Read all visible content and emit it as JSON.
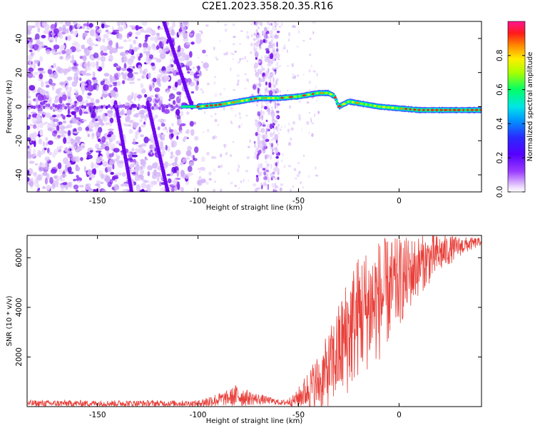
{
  "title": "C2E1.2023.358.20.35.R16",
  "chart_data": [
    {
      "type": "heatmap",
      "name": "spectrogram",
      "xlabel": "Height of straight line (km)",
      "ylabel": "Frequency (Hz)",
      "xlim": [
        -185,
        41
      ],
      "ylim": [
        -50,
        50
      ],
      "xticks": [
        -150,
        -100,
        -50,
        0
      ],
      "yticks": [
        -40,
        -20,
        0,
        20,
        40
      ],
      "colorbar": {
        "label": "Normalized spectral amplitude",
        "range": [
          0,
          1
        ],
        "ticks": [
          "0.0",
          "0.2",
          "0.4",
          "0.6",
          "0.8"
        ],
        "colormap": "rainbow (white-lavender at 0, purple, blue, cyan, green, yellow, orange, red, magenta at 1)"
      },
      "features": {
        "noise_region": [
          -185,
          -108
        ],
        "vertical_noise_band": [
          -72,
          -60
        ],
        "descending_streaks": [
          {
            "x_at_top": -117,
            "x_at_bottom": -103,
            "freq_top": 50,
            "freq_bottom": 0
          },
          {
            "x_at_top": -125,
            "x_at_bottom": -115,
            "freq_top": 2,
            "freq_bottom": -50
          },
          {
            "x_at_top": -141,
            "x_at_bottom": -133,
            "freq_top": 2,
            "freq_bottom": -50
          }
        ],
        "signal_ridge": [
          {
            "x": -108,
            "f": 0
          },
          {
            "x": -100,
            "f": 0
          },
          {
            "x": -90,
            "f": 1
          },
          {
            "x": -80,
            "f": 3
          },
          {
            "x": -70,
            "f": 5
          },
          {
            "x": -60,
            "f": 5
          },
          {
            "x": -50,
            "f": 6
          },
          {
            "x": -40,
            "f": 8
          },
          {
            "x": -35,
            "f": 8
          },
          {
            "x": -32,
            "f": 6
          },
          {
            "x": -30,
            "f": 0
          },
          {
            "x": -25,
            "f": 3
          },
          {
            "x": -20,
            "f": 2
          },
          {
            "x": -15,
            "f": 1
          },
          {
            "x": -10,
            "f": 0
          },
          {
            "x": 0,
            "f": -1
          },
          {
            "x": 10,
            "f": -2
          },
          {
            "x": 20,
            "f": -2
          },
          {
            "x": 30,
            "f": -2
          },
          {
            "x": 40,
            "f": -2
          }
        ]
      }
    },
    {
      "type": "line",
      "name": "snr",
      "xlabel": "Height of straight line (km)",
      "ylabel": "SNR (10 * v/v)",
      "xlim": [
        -185,
        41
      ],
      "ylim": [
        0,
        6900
      ],
      "xticks": [
        -150,
        -100,
        -50,
        0
      ],
      "yticks": [
        2000,
        4000,
        6000
      ],
      "color": "#e8403a",
      "envelope": [
        {
          "x": -185,
          "base": 130,
          "amp": 130
        },
        {
          "x": -100,
          "base": 130,
          "amp": 120
        },
        {
          "x": -95,
          "base": 200,
          "amp": 250
        },
        {
          "x": -85,
          "base": 350,
          "amp": 300
        },
        {
          "x": -80,
          "base": 450,
          "amp": 500
        },
        {
          "x": -75,
          "base": 350,
          "amp": 300
        },
        {
          "x": -65,
          "base": 250,
          "amp": 150
        },
        {
          "x": -58,
          "base": 150,
          "amp": 100
        },
        {
          "x": -52,
          "base": 250,
          "amp": 250
        },
        {
          "x": -45,
          "base": 700,
          "amp": 800
        },
        {
          "x": -40,
          "base": 1000,
          "amp": 1200
        },
        {
          "x": -35,
          "base": 1500,
          "amp": 1500
        },
        {
          "x": -30,
          "base": 2200,
          "amp": 2000
        },
        {
          "x": -25,
          "base": 3000,
          "amp": 2500
        },
        {
          "x": -20,
          "base": 3700,
          "amp": 2500
        },
        {
          "x": -10,
          "base": 4300,
          "amp": 2500
        },
        {
          "x": 0,
          "base": 5000,
          "amp": 1800
        },
        {
          "x": 10,
          "base": 5700,
          "amp": 1200
        },
        {
          "x": 20,
          "base": 6150,
          "amp": 800
        },
        {
          "x": 30,
          "base": 6450,
          "amp": 400
        },
        {
          "x": 41,
          "base": 6650,
          "amp": 150
        }
      ]
    }
  ]
}
